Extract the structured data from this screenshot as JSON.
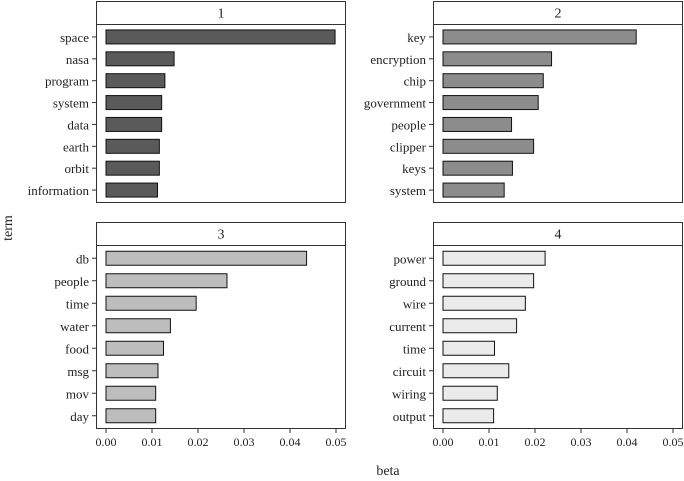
{
  "chart_data": {
    "type": "bar",
    "orientation": "horizontal",
    "xlabel": "beta",
    "ylabel": "term",
    "xlim": [
      0,
      0.05
    ],
    "xticks": [
      "0.00",
      "0.01",
      "0.02",
      "0.03",
      "0.04",
      "0.05"
    ],
    "panels": [
      {
        "title": "1",
        "color": "#5a5a5a",
        "categories": [
          "space",
          "nasa",
          "program",
          "system",
          "data",
          "earth",
          "orbit",
          "information"
        ],
        "values": [
          0.0498,
          0.0148,
          0.0128,
          0.0121,
          0.0121,
          0.0116,
          0.0116,
          0.0112
        ]
      },
      {
        "title": "2",
        "color": "#8c8c8c",
        "categories": [
          "key",
          "encryption",
          "chip",
          "government",
          "people",
          "clipper",
          "keys",
          "system"
        ],
        "values": [
          0.042,
          0.0236,
          0.0218,
          0.0207,
          0.0149,
          0.0197,
          0.0151,
          0.0133
        ]
      },
      {
        "title": "3",
        "color": "#bdbdbd",
        "categories": [
          "db",
          "people",
          "time",
          "water",
          "food",
          "msg",
          "mov",
          "day"
        ],
        "values": [
          0.0436,
          0.0263,
          0.0196,
          0.014,
          0.0125,
          0.0113,
          0.0108,
          0.0108
        ]
      },
      {
        "title": "4",
        "color": "#ebebeb",
        "categories": [
          "power",
          "ground",
          "wire",
          "current",
          "time",
          "circuit",
          "wiring",
          "output"
        ],
        "values": [
          0.0222,
          0.0197,
          0.0179,
          0.016,
          0.0112,
          0.0143,
          0.0118,
          0.011
        ]
      }
    ]
  }
}
